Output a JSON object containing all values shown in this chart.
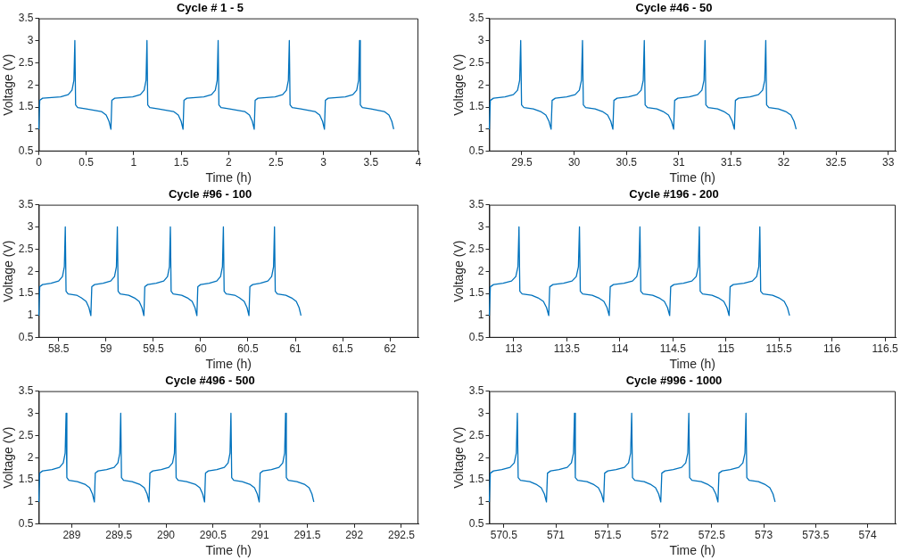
{
  "chart_data": [
    {
      "type": "line",
      "title": "Cycle # 1 - 5",
      "xlabel": "Time (h)",
      "ylabel": "Voltage (V)",
      "xlim": [
        0,
        4
      ],
      "xticks": [
        0,
        0.5,
        1,
        1.5,
        2,
        2.5,
        3,
        3.5,
        4
      ],
      "ylim": [
        0.5,
        3.5
      ],
      "yticks": [
        0.5,
        1,
        1.5,
        2,
        2.5,
        3,
        3.5
      ],
      "grid": false,
      "legend": false,
      "marker": "none",
      "line_style": "solid",
      "series": [
        {
          "color": "#0072bd",
          "x": [
            0,
            0.01,
            0.04,
            0.23,
            0.31,
            0.35,
            0.37,
            0.38,
            0.388,
            0.41,
            0.5,
            0.66,
            0.71,
            0.74,
            0.76,
            0.77,
            0.8,
            0.99,
            1.07,
            1.11,
            1.13,
            1.14,
            1.148,
            1.17,
            1.26,
            1.42,
            1.47,
            1.5,
            1.52,
            1.53,
            1.56,
            1.74,
            1.82,
            1.86,
            1.88,
            1.89,
            1.898,
            1.92,
            2.01,
            2.17,
            2.22,
            2.25,
            2.27,
            2.28,
            2.31,
            2.49,
            2.57,
            2.61,
            2.63,
            2.64,
            2.648,
            2.67,
            2.76,
            2.91,
            2.96,
            2.99,
            3.01,
            3.02,
            3.05,
            3.23,
            3.31,
            3.35,
            3.37,
            3.38,
            3.388,
            3.41,
            3.5,
            3.64,
            3.69,
            3.72,
            3.74
          ],
          "values": [
            1,
            1.65,
            1.7,
            1.73,
            1.78,
            1.88,
            2.1,
            3,
            1.55,
            1.49,
            1.46,
            1.4,
            1.32,
            1.18,
            1,
            1.65,
            1.7,
            1.73,
            1.78,
            1.88,
            2.1,
            3,
            1.55,
            1.49,
            1.46,
            1.4,
            1.32,
            1.18,
            1,
            1.65,
            1.7,
            1.73,
            1.78,
            1.88,
            2.1,
            3,
            1.55,
            1.49,
            1.46,
            1.4,
            1.32,
            1.18,
            1,
            1.65,
            1.7,
            1.73,
            1.78,
            1.88,
            2.1,
            3,
            1.55,
            1.49,
            1.46,
            1.4,
            1.32,
            1.18,
            1,
            1.65,
            1.7,
            1.73,
            1.78,
            1.88,
            2.1,
            3,
            1.55,
            1.49,
            1.46,
            1.4,
            1.32,
            1.18,
            1
          ]
        }
      ]
    },
    {
      "type": "line",
      "title": "Cycle #46 - 50",
      "xlabel": "Time (h)",
      "ylabel": "Voltage (V)",
      "xlim": [
        29.19,
        33.07
      ],
      "xticks": [
        29.5,
        30,
        30.5,
        31,
        31.5,
        32,
        32.5,
        33
      ],
      "ylim": [
        0.5,
        3.5
      ],
      "yticks": [
        0.5,
        1,
        1.5,
        2,
        2.5,
        3,
        3.5
      ],
      "grid": false,
      "legend": false,
      "marker": "none",
      "line_style": "solid",
      "series": [
        {
          "color": "#0072bd",
          "x": [
            29.19,
            29.2,
            29.23,
            29.34,
            29.42,
            29.46,
            29.48,
            29.49,
            29.498,
            29.52,
            29.61,
            29.68,
            29.73,
            29.76,
            29.78,
            29.79,
            29.82,
            29.93,
            30.01,
            30.05,
            30.07,
            30.08,
            30.088,
            30.11,
            30.2,
            30.27,
            30.32,
            30.35,
            30.37,
            30.38,
            30.41,
            30.52,
            30.6,
            30.64,
            30.66,
            30.67,
            30.678,
            30.7,
            30.79,
            30.85,
            30.9,
            30.93,
            30.95,
            30.96,
            30.99,
            31.1,
            31.18,
            31.22,
            31.24,
            31.25,
            31.258,
            31.28,
            31.37,
            31.43,
            31.48,
            31.51,
            31.53,
            31.54,
            31.57,
            31.68,
            31.76,
            31.8,
            31.82,
            31.83,
            31.838,
            31.86,
            31.95,
            32.02,
            32.07,
            32.1,
            32.12
          ],
          "values": [
            1,
            1.65,
            1.7,
            1.73,
            1.78,
            1.88,
            2.1,
            3,
            1.55,
            1.49,
            1.46,
            1.4,
            1.32,
            1.18,
            1,
            1.65,
            1.7,
            1.73,
            1.78,
            1.88,
            2.1,
            3,
            1.55,
            1.49,
            1.46,
            1.4,
            1.32,
            1.18,
            1,
            1.65,
            1.7,
            1.73,
            1.78,
            1.88,
            2.1,
            3,
            1.55,
            1.49,
            1.46,
            1.4,
            1.32,
            1.18,
            1,
            1.65,
            1.7,
            1.73,
            1.78,
            1.88,
            2.1,
            3,
            1.55,
            1.49,
            1.46,
            1.4,
            1.32,
            1.18,
            1,
            1.65,
            1.7,
            1.73,
            1.78,
            1.88,
            2.1,
            3,
            1.55,
            1.49,
            1.46,
            1.4,
            1.32,
            1.18,
            1
          ]
        }
      ]
    },
    {
      "type": "line",
      "title": "Cycle #96 - 100",
      "xlabel": "Time (h)",
      "ylabel": "Voltage (V)",
      "xlim": [
        58.29,
        62.3
      ],
      "xticks": [
        58.5,
        59,
        59.5,
        60,
        60.5,
        61,
        61.5,
        62
      ],
      "ylim": [
        0.5,
        3.5
      ],
      "yticks": [
        0.5,
        1,
        1.5,
        2,
        2.5,
        3,
        3.5
      ],
      "grid": false,
      "legend": false,
      "marker": "none",
      "line_style": "solid",
      "series": [
        {
          "color": "#0072bd",
          "x": [
            58.29,
            58.3,
            58.33,
            58.42,
            58.5,
            58.54,
            58.56,
            58.57,
            58.578,
            58.6,
            58.69,
            58.74,
            58.79,
            58.82,
            58.84,
            58.85,
            58.88,
            58.97,
            59.05,
            59.09,
            59.11,
            59.12,
            59.128,
            59.15,
            59.24,
            59.3,
            59.35,
            59.38,
            59.4,
            59.41,
            59.44,
            59.53,
            59.61,
            59.65,
            59.67,
            59.68,
            59.688,
            59.71,
            59.8,
            59.86,
            59.91,
            59.94,
            59.96,
            59.97,
            60,
            60.09,
            60.17,
            60.21,
            60.23,
            60.24,
            60.248,
            60.27,
            60.36,
            60.41,
            60.46,
            60.49,
            60.51,
            60.52,
            60.55,
            60.63,
            60.71,
            60.75,
            60.77,
            60.78,
            60.788,
            60.81,
            60.9,
            60.96,
            61.01,
            61.04,
            61.06
          ],
          "values": [
            1,
            1.65,
            1.7,
            1.73,
            1.78,
            1.88,
            2.1,
            3,
            1.55,
            1.49,
            1.46,
            1.4,
            1.32,
            1.18,
            1,
            1.65,
            1.7,
            1.73,
            1.78,
            1.88,
            2.1,
            3,
            1.55,
            1.49,
            1.46,
            1.4,
            1.32,
            1.18,
            1,
            1.65,
            1.7,
            1.73,
            1.78,
            1.88,
            2.1,
            3,
            1.55,
            1.49,
            1.46,
            1.4,
            1.32,
            1.18,
            1,
            1.65,
            1.7,
            1.73,
            1.78,
            1.88,
            2.1,
            3,
            1.55,
            1.49,
            1.46,
            1.4,
            1.32,
            1.18,
            1,
            1.65,
            1.7,
            1.73,
            1.78,
            1.88,
            2.1,
            3,
            1.55,
            1.49,
            1.46,
            1.4,
            1.32,
            1.18,
            1
          ]
        }
      ]
    },
    {
      "type": "line",
      "title": "Cycle #196 - 200",
      "xlabel": "Time (h)",
      "ylabel": "Voltage (V)",
      "xlim": [
        112.77,
        116.6
      ],
      "xticks": [
        113,
        113.5,
        114,
        114.5,
        115,
        115.5,
        116,
        116.5
      ],
      "ylim": [
        0.5,
        3.5
      ],
      "yticks": [
        0.5,
        1,
        1.5,
        2,
        2.5,
        3,
        3.5
      ],
      "grid": false,
      "legend": false,
      "marker": "none",
      "line_style": "solid",
      "series": [
        {
          "color": "#0072bd",
          "x": [
            112.77,
            112.78,
            112.81,
            112.9,
            112.98,
            113.02,
            113.04,
            113.05,
            113.058,
            113.08,
            113.17,
            113.23,
            113.28,
            113.31,
            113.33,
            113.34,
            113.37,
            113.47,
            113.55,
            113.59,
            113.61,
            113.62,
            113.628,
            113.65,
            113.74,
            113.8,
            113.85,
            113.88,
            113.9,
            113.91,
            113.94,
            114.04,
            114.12,
            114.16,
            114.18,
            114.19,
            114.198,
            114.22,
            114.31,
            114.37,
            114.42,
            114.45,
            114.47,
            114.48,
            114.51,
            114.6,
            114.68,
            114.72,
            114.74,
            114.75,
            114.758,
            114.78,
            114.87,
            114.93,
            114.98,
            115.01,
            115.03,
            115.04,
            115.07,
            115.17,
            115.25,
            115.29,
            115.31,
            115.32,
            115.328,
            115.35,
            115.44,
            115.5,
            115.55,
            115.58,
            115.6
          ],
          "values": [
            1,
            1.65,
            1.7,
            1.73,
            1.78,
            1.88,
            2.1,
            3,
            1.55,
            1.49,
            1.46,
            1.4,
            1.32,
            1.18,
            1,
            1.65,
            1.7,
            1.73,
            1.78,
            1.88,
            2.1,
            3,
            1.55,
            1.49,
            1.46,
            1.4,
            1.32,
            1.18,
            1,
            1.65,
            1.7,
            1.73,
            1.78,
            1.88,
            2.1,
            3,
            1.55,
            1.49,
            1.46,
            1.4,
            1.32,
            1.18,
            1,
            1.65,
            1.7,
            1.73,
            1.78,
            1.88,
            2.1,
            3,
            1.55,
            1.49,
            1.46,
            1.4,
            1.32,
            1.18,
            1,
            1.65,
            1.7,
            1.73,
            1.78,
            1.88,
            2.1,
            3,
            1.55,
            1.49,
            1.46,
            1.4,
            1.32,
            1.18,
            1
          ]
        }
      ]
    },
    {
      "type": "line",
      "title": "Cycle #496 - 500",
      "xlabel": "Time (h)",
      "ylabel": "Voltage (V)",
      "xlim": [
        288.65,
        292.68
      ],
      "xticks": [
        289,
        289.5,
        290,
        290.5,
        291,
        291.5,
        292,
        292.5
      ],
      "ylim": [
        0.5,
        3.5
      ],
      "yticks": [
        0.5,
        1,
        1.5,
        2,
        2.5,
        3,
        3.5
      ],
      "grid": false,
      "legend": false,
      "marker": "none",
      "line_style": "solid",
      "series": [
        {
          "color": "#0072bd",
          "x": [
            288.65,
            288.66,
            288.69,
            288.79,
            288.87,
            288.91,
            288.93,
            288.94,
            288.948,
            288.97,
            289.06,
            289.14,
            289.19,
            289.22,
            289.24,
            289.25,
            289.28,
            289.37,
            289.45,
            289.49,
            289.51,
            289.52,
            289.528,
            289.55,
            289.64,
            289.72,
            289.77,
            289.8,
            289.82,
            289.83,
            289.86,
            289.95,
            290.03,
            290.07,
            290.09,
            290.1,
            290.108,
            290.13,
            290.22,
            290.31,
            290.36,
            290.39,
            290.41,
            290.42,
            290.45,
            290.54,
            290.62,
            290.66,
            290.68,
            290.69,
            290.698,
            290.72,
            290.81,
            290.89,
            290.94,
            290.97,
            290.99,
            291,
            291.03,
            291.12,
            291.2,
            291.24,
            291.26,
            291.27,
            291.278,
            291.3,
            291.39,
            291.47,
            291.52,
            291.55,
            291.57
          ],
          "values": [
            1,
            1.65,
            1.7,
            1.73,
            1.78,
            1.88,
            2.1,
            3,
            1.55,
            1.49,
            1.46,
            1.4,
            1.32,
            1.18,
            1,
            1.65,
            1.7,
            1.73,
            1.78,
            1.88,
            2.1,
            3,
            1.55,
            1.49,
            1.46,
            1.4,
            1.32,
            1.18,
            1,
            1.65,
            1.7,
            1.73,
            1.78,
            1.88,
            2.1,
            3,
            1.55,
            1.49,
            1.46,
            1.4,
            1.32,
            1.18,
            1,
            1.65,
            1.7,
            1.73,
            1.78,
            1.88,
            2.1,
            3,
            1.55,
            1.49,
            1.46,
            1.4,
            1.32,
            1.18,
            1,
            1.65,
            1.7,
            1.73,
            1.78,
            1.88,
            2.1,
            3,
            1.55,
            1.49,
            1.46,
            1.4,
            1.32,
            1.18,
            1
          ]
        }
      ]
    },
    {
      "type": "line",
      "title": "Cycle #996 - 1000",
      "xlabel": "Time (h)",
      "ylabel": "Voltage (V)",
      "xlim": [
        570.36,
        574.27
      ],
      "xticks": [
        570.5,
        571,
        571.5,
        572,
        572.5,
        573,
        573.5,
        574
      ],
      "ylim": [
        0.5,
        3.5
      ],
      "yticks": [
        0.5,
        1,
        1.5,
        2,
        2.5,
        3,
        3.5
      ],
      "grid": false,
      "legend": false,
      "marker": "none",
      "line_style": "solid",
      "series": [
        {
          "color": "#0072bd",
          "x": [
            570.36,
            570.37,
            570.4,
            570.48,
            570.56,
            570.6,
            570.62,
            570.63,
            570.638,
            570.66,
            570.75,
            570.81,
            570.86,
            570.89,
            570.91,
            570.92,
            570.95,
            571.03,
            571.11,
            571.15,
            571.17,
            571.18,
            571.188,
            571.21,
            571.3,
            571.36,
            571.41,
            571.44,
            571.46,
            571.47,
            571.5,
            571.58,
            571.66,
            571.7,
            571.72,
            571.73,
            571.738,
            571.76,
            571.85,
            571.91,
            571.96,
            571.99,
            572.01,
            572.02,
            572.05,
            572.13,
            572.21,
            572.25,
            572.27,
            572.28,
            572.288,
            572.31,
            572.4,
            572.46,
            572.51,
            572.54,
            572.56,
            572.57,
            572.6,
            572.68,
            572.76,
            572.8,
            572.82,
            572.83,
            572.838,
            572.86,
            572.95,
            573.01,
            573.06,
            573.09,
            573.11
          ],
          "values": [
            1,
            1.65,
            1.7,
            1.73,
            1.78,
            1.88,
            2.1,
            3,
            1.55,
            1.49,
            1.46,
            1.4,
            1.32,
            1.18,
            1,
            1.65,
            1.7,
            1.73,
            1.78,
            1.88,
            2.1,
            3,
            1.55,
            1.49,
            1.46,
            1.4,
            1.32,
            1.18,
            1,
            1.65,
            1.7,
            1.73,
            1.78,
            1.88,
            2.1,
            3,
            1.55,
            1.49,
            1.46,
            1.4,
            1.32,
            1.18,
            1,
            1.65,
            1.7,
            1.73,
            1.78,
            1.88,
            2.1,
            3,
            1.55,
            1.49,
            1.46,
            1.4,
            1.32,
            1.18,
            1,
            1.65,
            1.7,
            1.73,
            1.78,
            1.88,
            2.1,
            3,
            1.55,
            1.49,
            1.46,
            1.4,
            1.32,
            1.18,
            1
          ]
        }
      ]
    }
  ]
}
